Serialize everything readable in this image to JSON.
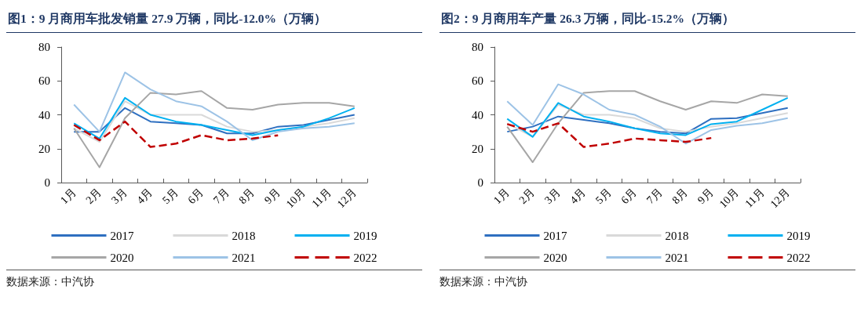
{
  "chart_data": [
    {
      "type": "line",
      "title": "图1：9 月商用车批发销量 27.9 万辆，同比-12.0%（万辆）",
      "categories": [
        "1月",
        "2月",
        "3月",
        "4月",
        "5月",
        "6月",
        "7月",
        "8月",
        "9月",
        "10月",
        "11月",
        "12月"
      ],
      "ylim": [
        0,
        80
      ],
      "yticks": [
        0,
        20,
        40,
        60,
        80
      ],
      "grid": false,
      "legend": "bottom",
      "marker": "none",
      "annotations": [
        "数据来源：中汽协"
      ],
      "series": [
        {
          "name": "2017",
          "color": "#2e6fc0",
          "values": [
            30,
            30,
            44,
            36,
            35,
            34,
            29,
            29,
            33,
            34,
            37,
            40
          ]
        },
        {
          "name": "2018",
          "color": "#d9d9d9",
          "values": [
            32,
            24,
            48,
            40,
            40,
            40,
            33,
            30,
            31,
            33,
            35,
            38
          ]
        },
        {
          "name": "2019",
          "color": "#00b0f0",
          "values": [
            35,
            26,
            50,
            40,
            36,
            34,
            31,
            28,
            31,
            33,
            38,
            44
          ]
        },
        {
          "name": "2020",
          "color": "#a6a6a6",
          "values": [
            32,
            9,
            38,
            53,
            52,
            54,
            44,
            43,
            46,
            47,
            47,
            45
          ]
        },
        {
          "name": "2021",
          "color": "#9dc3e6",
          "values": [
            46,
            30,
            65,
            55,
            48,
            45,
            36,
            25,
            30,
            32,
            33,
            35
          ]
        },
        {
          "name": "2022",
          "color": "#c00000",
          "line_style": "dashed",
          "values": [
            34,
            25,
            36,
            21,
            23,
            28,
            25,
            26,
            27.9,
            null,
            null,
            null
          ]
        }
      ]
    },
    {
      "type": "line",
      "title": "图2：9 月商用车产量 26.3 万辆，同比-15.2%（万辆）",
      "categories": [
        "1月",
        "2月",
        "3月",
        "4月",
        "5月",
        "6月",
        "7月",
        "8月",
        "9月",
        "10月",
        "11月",
        "12月"
      ],
      "ylim": [
        0,
        80
      ],
      "yticks": [
        0,
        20,
        40,
        60,
        80
      ],
      "grid": false,
      "legend": "bottom",
      "marker": "none",
      "annotations": [
        "数据来源：中汽协"
      ],
      "series": [
        {
          "name": "2017",
          "color": "#2e6fc0",
          "values": [
            30,
            33,
            39,
            37,
            35,
            32,
            30,
            29,
            37.6,
            38,
            41,
            44
          ]
        },
        {
          "name": "2018",
          "color": "#d9d9d9",
          "values": [
            35,
            27,
            46,
            40,
            40,
            38,
            32,
            30,
            33,
            35,
            38,
            41
          ]
        },
        {
          "name": "2019",
          "color": "#00b0f0",
          "values": [
            37.6,
            27,
            47,
            39,
            36,
            32,
            29,
            28,
            34.5,
            36,
            43,
            50
          ]
        },
        {
          "name": "2020",
          "color": "#a6a6a6",
          "values": [
            33,
            12,
            35,
            53,
            54,
            54,
            48,
            43,
            48,
            47,
            52,
            51
          ]
        },
        {
          "name": "2021",
          "color": "#9dc3e6",
          "values": [
            48,
            34,
            58,
            52,
            43,
            40,
            33,
            23,
            31,
            33.5,
            35,
            38
          ]
        },
        {
          "name": "2022",
          "color": "#c00000",
          "line_style": "dashed",
          "values": [
            34.5,
            30,
            35,
            21,
            23,
            26,
            25,
            24,
            26.3,
            null,
            null,
            null
          ]
        }
      ]
    }
  ]
}
